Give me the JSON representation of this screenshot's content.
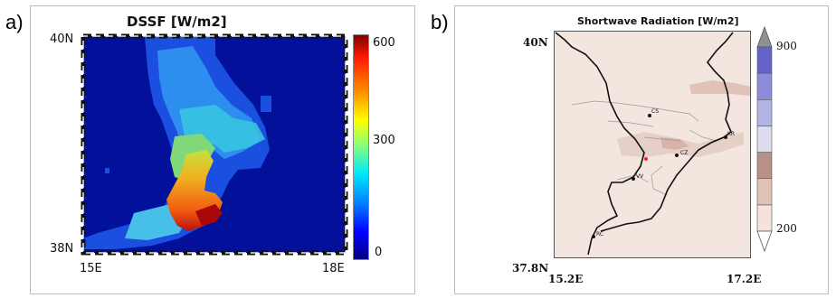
{
  "panel_a": {
    "letter": "a)",
    "title": "DSSF [W/m2]",
    "lat_top": "40N",
    "lat_bottom": "38N",
    "lon_left": "15E",
    "lon_right": "18E",
    "colorbar": {
      "ticks": [
        "600",
        "300",
        "0"
      ],
      "min": 0,
      "max": 650
    }
  },
  "panel_b": {
    "letter": "b)",
    "title": "Shortwave Radiation [W/m2]",
    "lat_top": "40N",
    "lat_bottom": "37.8N",
    "lon_left": "15.2E",
    "lon_right": "17.2E",
    "colorbar": {
      "ticks": [
        "900",
        "200"
      ],
      "colors": [
        "#f4e3dc",
        "#e0c2b8",
        "#b89088",
        "#dcdcee",
        "#b4b4e4",
        "#8c8cd8",
        "#6464c8"
      ]
    },
    "cities": [
      "CS",
      "KR",
      "CZ",
      "VV",
      "RC"
    ]
  },
  "chart_data": [
    {
      "type": "heatmap",
      "title": "DSSF [W/m2]",
      "xlabel": "",
      "ylabel": "",
      "xlim": [
        "15E",
        "18E"
      ],
      "ylim": [
        "38N",
        "40N"
      ],
      "value_range": [
        0,
        650
      ],
      "colorbar_ticks": [
        0,
        300,
        600
      ],
      "background_value": 0
    },
    {
      "type": "heatmap",
      "title": "Shortwave Radiation [W/m2]",
      "xlabel": "",
      "ylabel": "",
      "xlim": [
        "15.2E",
        "17.2E"
      ],
      "ylim": [
        "37.8N",
        "40N"
      ],
      "colorbar_ticks": [
        200,
        900
      ],
      "cities": [
        "CS",
        "KR",
        "CZ",
        "VV",
        "RC"
      ]
    }
  ]
}
